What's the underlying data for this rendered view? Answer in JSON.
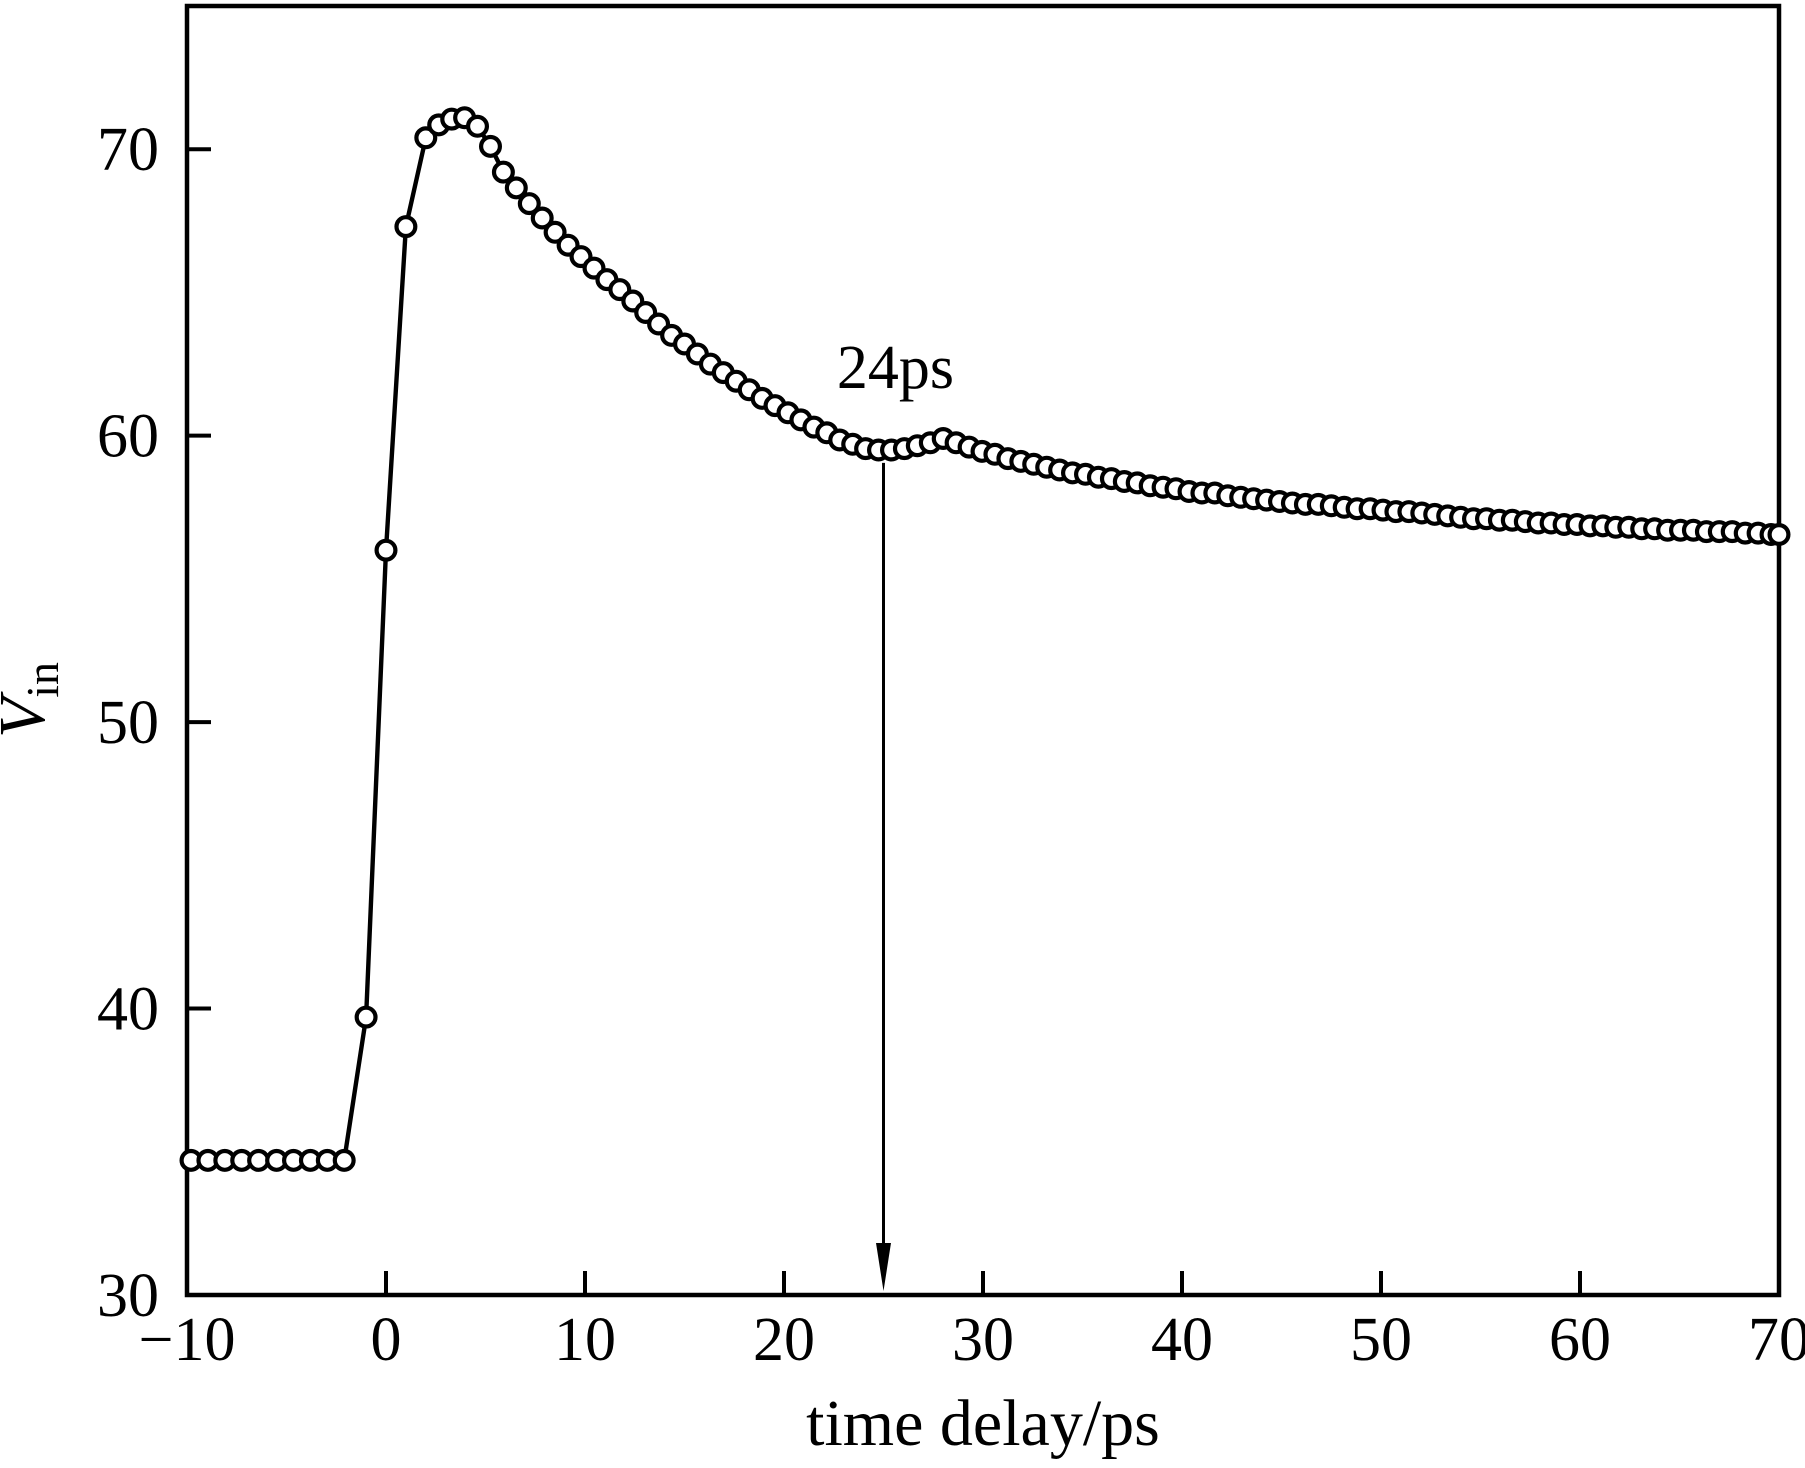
{
  "figure": {
    "background": "#ffffff",
    "ink": "#000000"
  },
  "chart_data": {
    "type": "scatter",
    "title": "",
    "xlabel": "time delay/ps",
    "ylabel": "V",
    "ylabel_subscript": "in",
    "xlim": [
      -10,
      70
    ],
    "ylim": [
      30,
      75
    ],
    "x_ticks": [
      -10,
      0,
      10,
      20,
      30,
      40,
      50,
      60,
      70
    ],
    "x_tick_labels": [
      "−10",
      "0",
      "10",
      "20",
      "30",
      "40",
      "50",
      "60",
      "70"
    ],
    "y_ticks": [
      30,
      40,
      50,
      60,
      70
    ],
    "y_tick_labels": [
      "30",
      "40",
      "50",
      "60",
      "70"
    ],
    "grid": false,
    "legend": "none",
    "marker": "open-circle",
    "line_between_points": true,
    "annotation": {
      "label": "24ps",
      "label_x": 25.6,
      "label_y": 62.4,
      "arrow_x": 25,
      "arrow_y_from": 59.05,
      "arrow_y_to": 30.1
    },
    "points": [
      [
        -9.8,
        34.7
      ],
      [
        -8.95,
        34.7
      ],
      [
        -8.1,
        34.7
      ],
      [
        -7.25,
        34.7
      ],
      [
        -6.4,
        34.7
      ],
      [
        -5.5,
        34.7
      ],
      [
        -4.65,
        34.7
      ],
      [
        -3.8,
        34.7
      ],
      [
        -2.95,
        34.7
      ],
      [
        -2.1,
        34.7
      ],
      [
        -1,
        39.7
      ],
      [
        0,
        56.0
      ],
      [
        1,
        67.3
      ],
      [
        2,
        70.4
      ],
      [
        2.65,
        70.85
      ],
      [
        3.3,
        71.05
      ],
      [
        3.95,
        71.1
      ],
      [
        4.6,
        70.8
      ],
      [
        5.25,
        70.1
      ],
      [
        5.9,
        69.2
      ],
      [
        6.55,
        68.65
      ],
      [
        7.2,
        68.1
      ],
      [
        7.85,
        67.6
      ],
      [
        8.5,
        67.1
      ],
      [
        9.15,
        66.65
      ],
      [
        9.8,
        66.25
      ],
      [
        10.45,
        65.85
      ],
      [
        11.1,
        65.45
      ],
      [
        11.75,
        65.1
      ],
      [
        12.4,
        64.7
      ],
      [
        13.05,
        64.3
      ],
      [
        13.7,
        63.9
      ],
      [
        14.35,
        63.5
      ],
      [
        15,
        63.2
      ],
      [
        15.65,
        62.85
      ],
      [
        16.3,
        62.5
      ],
      [
        16.95,
        62.2
      ],
      [
        17.6,
        61.9
      ],
      [
        18.25,
        61.6
      ],
      [
        18.9,
        61.3
      ],
      [
        19.55,
        61.05
      ],
      [
        20.2,
        60.8
      ],
      [
        20.85,
        60.55
      ],
      [
        21.5,
        60.3
      ],
      [
        22.15,
        60.1
      ],
      [
        22.8,
        59.85
      ],
      [
        23.45,
        59.7
      ],
      [
        24.1,
        59.55
      ],
      [
        24.75,
        59.5
      ],
      [
        25.4,
        59.5
      ],
      [
        26.05,
        59.55
      ],
      [
        26.7,
        59.65
      ],
      [
        27.35,
        59.75
      ],
      [
        28,
        59.9
      ],
      [
        28.65,
        59.75
      ],
      [
        29.3,
        59.6
      ],
      [
        29.95,
        59.45
      ],
      [
        30.6,
        59.35
      ],
      [
        31.25,
        59.2
      ],
      [
        31.9,
        59.1
      ],
      [
        32.55,
        59.0
      ],
      [
        33.2,
        58.9
      ],
      [
        33.85,
        58.8
      ],
      [
        34.5,
        58.7
      ],
      [
        35.15,
        58.65
      ],
      [
        35.8,
        58.55
      ],
      [
        36.45,
        58.5
      ],
      [
        37.1,
        58.4
      ],
      [
        37.75,
        58.35
      ],
      [
        38.4,
        58.25
      ],
      [
        39.05,
        58.2
      ],
      [
        39.7,
        58.15
      ],
      [
        40.35,
        58.05
      ],
      [
        41,
        58.0
      ],
      [
        41.65,
        58.0
      ],
      [
        42.3,
        57.9
      ],
      [
        42.95,
        57.85
      ],
      [
        43.6,
        57.8
      ],
      [
        44.25,
        57.75
      ],
      [
        44.9,
        57.7
      ],
      [
        45.55,
        57.65
      ],
      [
        46.2,
        57.6
      ],
      [
        46.85,
        57.6
      ],
      [
        47.5,
        57.55
      ],
      [
        48.15,
        57.5
      ],
      [
        48.8,
        57.45
      ],
      [
        49.45,
        57.45
      ],
      [
        50.1,
        57.4
      ],
      [
        50.75,
        57.35
      ],
      [
        51.4,
        57.35
      ],
      [
        52.05,
        57.3
      ],
      [
        52.7,
        57.25
      ],
      [
        53.35,
        57.2
      ],
      [
        54,
        57.15
      ],
      [
        54.65,
        57.1
      ],
      [
        55.3,
        57.1
      ],
      [
        55.95,
        57.05
      ],
      [
        56.6,
        57.05
      ],
      [
        57.25,
        57.0
      ],
      [
        57.9,
        56.95
      ],
      [
        58.55,
        56.95
      ],
      [
        59.2,
        56.9
      ],
      [
        59.85,
        56.9
      ],
      [
        60.5,
        56.85
      ],
      [
        61.15,
        56.85
      ],
      [
        61.8,
        56.8
      ],
      [
        62.45,
        56.8
      ],
      [
        63.1,
        56.75
      ],
      [
        63.75,
        56.75
      ],
      [
        64.4,
        56.7
      ],
      [
        65.05,
        56.7
      ],
      [
        65.7,
        56.7
      ],
      [
        66.35,
        56.65
      ],
      [
        67,
        56.65
      ],
      [
        67.65,
        56.65
      ],
      [
        68.3,
        56.6
      ],
      [
        68.95,
        56.6
      ],
      [
        69.6,
        56.55
      ],
      [
        70,
        56.55
      ]
    ]
  }
}
